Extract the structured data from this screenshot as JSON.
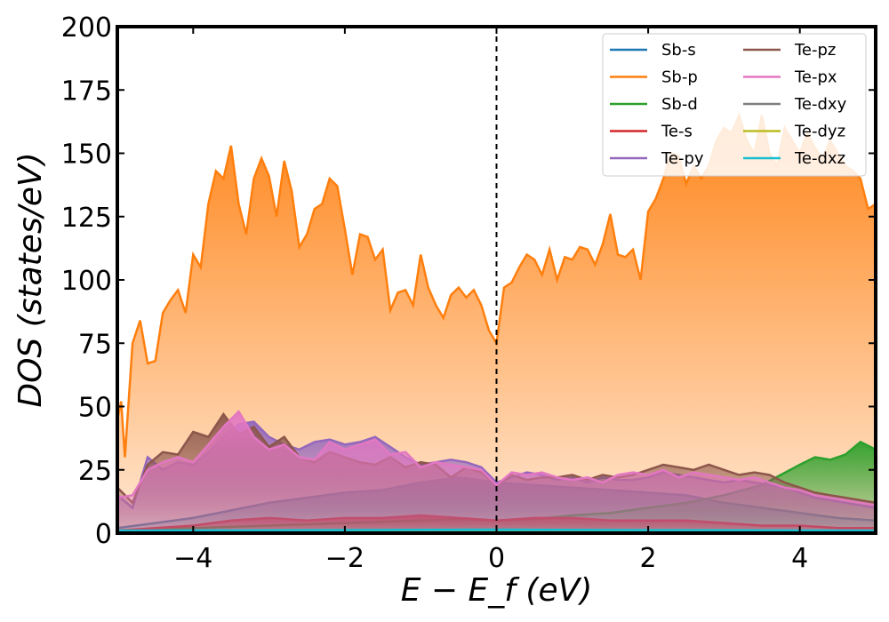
{
  "chart_data": {
    "type": "area",
    "xlabel": "E − E_f (eV)",
    "ylabel": "DOS (states/eV)",
    "xlim": [
      -5,
      5
    ],
    "ylim": [
      0,
      200
    ],
    "xticks": [
      -4,
      -2,
      0,
      2,
      4
    ],
    "xtick_labels": [
      "−4",
      "−2",
      "0",
      "2",
      "4"
    ],
    "yticks": [
      0,
      25,
      50,
      75,
      100,
      125,
      150,
      175,
      200
    ],
    "ytick_labels": [
      "0",
      "25",
      "50",
      "75",
      "100",
      "125",
      "150",
      "175",
      "200"
    ],
    "grid": false,
    "fermi_line_x": 0,
    "legend_position": "top-right",
    "legend_columns": 2,
    "series": [
      {
        "name": "Sb-s",
        "color": "#1f77b4",
        "x": [
          -5.0,
          -4.5,
          -4.0,
          -3.5,
          -3.0,
          -2.5,
          -2.0,
          -1.5,
          -1.0,
          -0.5,
          0.0,
          0.5,
          1.0,
          1.5,
          2.0,
          2.5,
          3.0,
          3.5,
          4.0,
          4.5,
          5.0
        ],
        "values": [
          2,
          4,
          6,
          9,
          12,
          14,
          16,
          17,
          20,
          22,
          20,
          19,
          18,
          17,
          16,
          15,
          12,
          10,
          8,
          6,
          5
        ]
      },
      {
        "name": "Sb-p",
        "color": "#ff7f0e",
        "x": [
          -5.0,
          -4.95,
          -4.9,
          -4.8,
          -4.7,
          -4.6,
          -4.5,
          -4.4,
          -4.3,
          -4.2,
          -4.1,
          -4.0,
          -3.9,
          -3.8,
          -3.7,
          -3.6,
          -3.5,
          -3.4,
          -3.3,
          -3.2,
          -3.1,
          -3.0,
          -2.9,
          -2.8,
          -2.7,
          -2.6,
          -2.5,
          -2.4,
          -2.3,
          -2.2,
          -2.1,
          -2.0,
          -1.9,
          -1.8,
          -1.7,
          -1.6,
          -1.5,
          -1.4,
          -1.3,
          -1.2,
          -1.1,
          -1.0,
          -0.9,
          -0.8,
          -0.7,
          -0.6,
          -0.5,
          -0.4,
          -0.3,
          -0.2,
          -0.1,
          0.0,
          0.1,
          0.2,
          0.3,
          0.4,
          0.5,
          0.6,
          0.7,
          0.8,
          0.9,
          1.0,
          1.1,
          1.2,
          1.3,
          1.4,
          1.5,
          1.6,
          1.7,
          1.8,
          1.9,
          2.0,
          2.1,
          2.2,
          2.3,
          2.4,
          2.5,
          2.6,
          2.7,
          2.8,
          2.9,
          3.0,
          3.1,
          3.2,
          3.3,
          3.4,
          3.5,
          3.6,
          3.7,
          3.8,
          3.9,
          4.0,
          4.1,
          4.2,
          4.3,
          4.4,
          4.5,
          4.6,
          4.7,
          4.8,
          4.9,
          5.0
        ],
        "values": [
          45,
          52,
          30,
          75,
          84,
          67,
          68,
          87,
          92,
          96,
          87,
          110,
          105,
          130,
          143,
          140,
          153,
          130,
          118,
          140,
          148,
          141,
          125,
          147,
          135,
          113,
          118,
          128,
          130,
          140,
          137,
          120,
          102,
          118,
          117,
          108,
          112,
          88,
          95,
          96,
          90,
          110,
          97,
          90,
          85,
          94,
          97,
          93,
          96,
          90,
          80,
          75,
          97,
          99,
          105,
          110,
          108,
          102,
          112,
          100,
          109,
          108,
          113,
          112,
          106,
          114,
          126,
          110,
          109,
          112,
          100,
          127,
          132,
          140,
          150,
          149,
          138,
          145,
          140,
          145,
          155,
          160,
          158,
          165,
          155,
          150,
          165,
          150,
          145,
          160,
          155,
          150,
          158,
          152,
          148,
          155,
          150,
          145,
          143,
          140,
          128,
          130
        ]
      },
      {
        "name": "Sb-d",
        "color": "#2ca02c",
        "x": [
          -5.0,
          -4.5,
          -4.0,
          -3.5,
          -3.0,
          -2.5,
          -2.0,
          -1.5,
          -1.0,
          -0.5,
          0.0,
          0.5,
          1.0,
          1.5,
          2.0,
          2.5,
          3.0,
          3.5,
          4.0,
          4.2,
          4.4,
          4.6,
          4.8,
          5.0
        ],
        "values": [
          1,
          1.5,
          2,
          2.5,
          3,
          3.5,
          4,
          4.5,
          5,
          5.5,
          5,
          5.5,
          7,
          8,
          10,
          12,
          15,
          19,
          27,
          30,
          29,
          31,
          36,
          33
        ]
      },
      {
        "name": "Te-s",
        "color": "#d62728",
        "x": [
          -5.0,
          -4.5,
          -4.0,
          -3.5,
          -3.0,
          -2.5,
          -2.0,
          -1.5,
          -1.0,
          -0.5,
          0.0,
          0.5,
          1.0,
          1.5,
          2.0,
          2.5,
          3.0,
          3.5,
          4.0,
          4.5,
          5.0
        ],
        "values": [
          1,
          2,
          3,
          5,
          6,
          5,
          6,
          6,
          7,
          6,
          5,
          6,
          6,
          5,
          5,
          5,
          4,
          3,
          3,
          2,
          2
        ]
      },
      {
        "name": "Te-py",
        "color": "#9467bd",
        "x": [
          -5.0,
          -4.8,
          -4.6,
          -4.4,
          -4.2,
          -4.0,
          -3.8,
          -3.6,
          -3.4,
          -3.2,
          -3.0,
          -2.8,
          -2.6,
          -2.4,
          -2.2,
          -2.0,
          -1.8,
          -1.6,
          -1.4,
          -1.2,
          -1.0,
          -0.8,
          -0.6,
          -0.4,
          -0.2,
          0.0,
          0.2,
          0.4,
          0.6,
          0.8,
          1.0,
          1.2,
          1.4,
          1.6,
          1.8,
          2.0,
          2.2,
          2.4,
          2.6,
          2.8,
          3.0,
          3.2,
          3.4,
          3.6,
          3.8,
          4.0,
          4.2,
          4.4,
          4.6,
          4.8,
          5.0
        ],
        "values": [
          15,
          10,
          30,
          25,
          28,
          27,
          32,
          38,
          43,
          44,
          38,
          35,
          33,
          36,
          37,
          35,
          36,
          38,
          34,
          30,
          27,
          28,
          29,
          28,
          26,
          20,
          22,
          24,
          23,
          21,
          22,
          20,
          22,
          21,
          21,
          22,
          24,
          23,
          22,
          21,
          20,
          21,
          20,
          19,
          18,
          16,
          14,
          13,
          12,
          11,
          10
        ]
      },
      {
        "name": "Te-pz",
        "color": "#8c564b",
        "x": [
          -5.0,
          -4.8,
          -4.6,
          -4.4,
          -4.2,
          -4.0,
          -3.8,
          -3.6,
          -3.4,
          -3.2,
          -3.0,
          -2.8,
          -2.6,
          -2.4,
          -2.2,
          -2.0,
          -1.8,
          -1.6,
          -1.4,
          -1.2,
          -1.0,
          -0.8,
          -0.6,
          -0.4,
          -0.2,
          0.0,
          0.2,
          0.4,
          0.6,
          0.8,
          1.0,
          1.2,
          1.4,
          1.6,
          1.8,
          2.0,
          2.2,
          2.4,
          2.6,
          2.8,
          3.0,
          3.2,
          3.4,
          3.6,
          3.8,
          4.0,
          4.2,
          4.4,
          4.6,
          4.8,
          5.0
        ],
        "values": [
          18,
          12,
          27,
          32,
          31,
          40,
          38,
          47,
          39,
          42,
          34,
          38,
          30,
          28,
          32,
          30,
          28,
          27,
          30,
          26,
          28,
          27,
          22,
          26,
          24,
          19,
          23,
          21,
          22,
          22,
          23,
          21,
          23,
          22,
          23,
          25,
          27,
          26,
          25,
          27,
          25,
          23,
          24,
          23,
          20,
          18,
          16,
          15,
          14,
          13,
          12
        ]
      },
      {
        "name": "Te-px",
        "color": "#e377c2",
        "x": [
          -5.0,
          -4.8,
          -4.6,
          -4.4,
          -4.2,
          -4.0,
          -3.8,
          -3.6,
          -3.4,
          -3.2,
          -3.0,
          -2.8,
          -2.6,
          -2.4,
          -2.2,
          -2.0,
          -1.8,
          -1.6,
          -1.4,
          -1.2,
          -1.0,
          -0.8,
          -0.6,
          -0.4,
          -0.2,
          0.0,
          0.2,
          0.4,
          0.6,
          0.8,
          1.0,
          1.2,
          1.4,
          1.6,
          1.8,
          2.0,
          2.2,
          2.4,
          2.6,
          2.8,
          3.0,
          3.2,
          3.4,
          3.6,
          3.8,
          4.0,
          4.2,
          4.4,
          4.6,
          4.8,
          5.0
        ],
        "values": [
          14,
          15,
          25,
          28,
          30,
          28,
          35,
          42,
          48,
          38,
          33,
          35,
          30,
          29,
          36,
          33,
          35,
          37,
          31,
          32,
          26,
          28,
          27,
          26,
          25,
          19,
          24,
          23,
          24,
          22,
          21,
          22,
          20,
          23,
          24,
          23,
          25,
          22,
          24,
          23,
          22,
          21,
          22,
          20,
          18,
          17,
          15,
          14,
          13,
          12,
          11
        ]
      },
      {
        "name": "Te-dxy",
        "color": "#7f7f7f",
        "x": [
          -5.0,
          -2.5,
          0.0,
          2.5,
          5.0
        ],
        "values": [
          0.5,
          0.6,
          0.7,
          0.6,
          0.5
        ]
      },
      {
        "name": "Te-dyz",
        "color": "#bcbd22",
        "x": [
          -5.0,
          -2.5,
          0.0,
          2.5,
          5.0
        ],
        "values": [
          0.5,
          0.6,
          0.7,
          0.6,
          0.5
        ]
      },
      {
        "name": "Te-dxz",
        "color": "#17becf",
        "x": [
          -5.0,
          -2.5,
          0.0,
          2.5,
          5.0
        ],
        "values": [
          1,
          1.2,
          1.4,
          1.2,
          1
        ]
      }
    ]
  }
}
